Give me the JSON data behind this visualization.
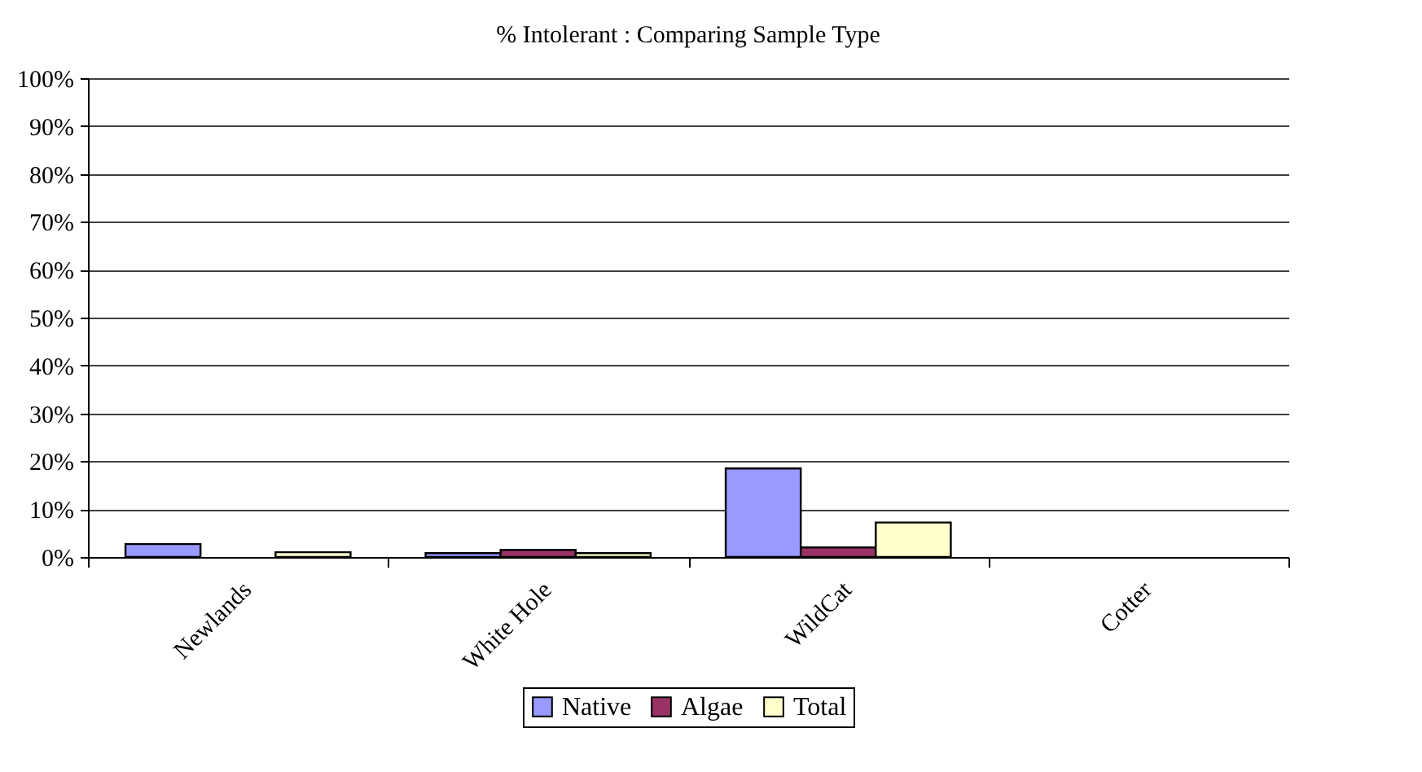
{
  "chart_data": {
    "type": "bar",
    "title": "% Intolerant :  Comparing  Sample Type",
    "categories": [
      "Newlands",
      "White Hole",
      "WildCat",
      "Cotter"
    ],
    "series": [
      {
        "name": "Native",
        "color": "#9999ff",
        "values": [
          2.7,
          0.8,
          18.5,
          0
        ]
      },
      {
        "name": "Algae",
        "color": "#993366",
        "values": [
          0,
          1.5,
          2,
          0
        ]
      },
      {
        "name": "Total",
        "color": "#ffffcc",
        "values": [
          1,
          0.8,
          7.2,
          0
        ]
      }
    ],
    "ylim": [
      0,
      100
    ],
    "yticks": [
      {
        "value": 0,
        "label": "0%"
      },
      {
        "value": 10,
        "label": "10%"
      },
      {
        "value": 20,
        "label": "20%"
      },
      {
        "value": 30,
        "label": "30%"
      },
      {
        "value": 40,
        "label": "40%"
      },
      {
        "value": 50,
        "label": "50%"
      },
      {
        "value": 60,
        "label": "60%"
      },
      {
        "value": 70,
        "label": "70%"
      },
      {
        "value": 80,
        "label": "80%"
      },
      {
        "value": 90,
        "label": "90%"
      },
      {
        "value": 100,
        "label": "100%"
      }
    ],
    "grid": "y",
    "legend": "bottom"
  }
}
